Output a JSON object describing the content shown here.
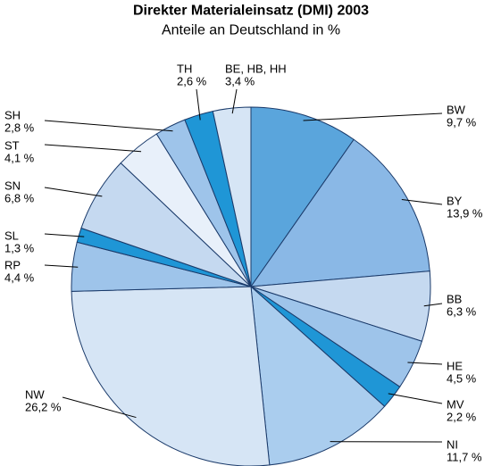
{
  "chart_data": {
    "type": "pie",
    "title": "Direkter Materialeinsatz (DMI) 2003",
    "subtitle": "Anteile an Deutschland in %",
    "categories": [
      "BW",
      "BY",
      "BB",
      "HE",
      "MV",
      "NI",
      "NW",
      "RP",
      "SL",
      "SN",
      "ST",
      "SH",
      "TH",
      "BE, HB, HH"
    ],
    "values": [
      9.7,
      13.9,
      6.3,
      4.5,
      2.2,
      11.7,
      26.2,
      4.4,
      1.3,
      6.8,
      4.1,
      2.8,
      2.6,
      3.4
    ],
    "value_labels": [
      "9,7 %",
      "13,9 %",
      "6,3 %",
      "4,5 %",
      "2,2 %",
      "11,7 %",
      "26,2 %",
      "4,4 %",
      "1,3 %",
      "6,8 %",
      "4,1 %",
      "2,8 %",
      "2,6 %",
      "3,4 %"
    ],
    "colors": [
      "#5aa5dc",
      "#8ab8e6",
      "#c5d9f0",
      "#9ec4ea",
      "#1f96d6",
      "#aacdee",
      "#d6e5f5",
      "#9ec4ea",
      "#1f96d6",
      "#c5d9f0",
      "#e8f0fa",
      "#9ec4ea",
      "#1f96d6",
      "#d6e5f5"
    ]
  }
}
